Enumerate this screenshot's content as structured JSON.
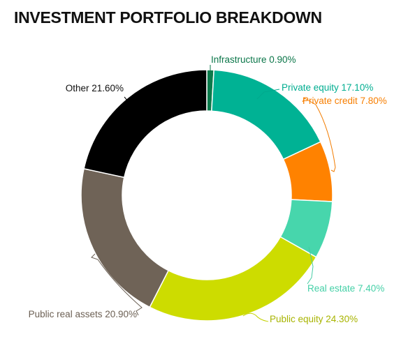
{
  "chart_data": {
    "type": "pie",
    "title": "INVESTMENT PORTFOLIO BREAKDOWN",
    "donut": true,
    "slices": [
      {
        "label": "Infrastructure",
        "display": "Infrastructure 0.90%",
        "value": 0.9,
        "color": "#0b7a4b"
      },
      {
        "label": "Private equity",
        "display": "Private equity 17.10%",
        "value": 17.1,
        "color": "#00b294"
      },
      {
        "label": "Private credit",
        "display": "Private credit 7.80%",
        "value": 7.8,
        "color": "#ff8200"
      },
      {
        "label": "Real estate",
        "display": "Real estate 7.40%",
        "value": 7.4,
        "color": "#47d6ac"
      },
      {
        "label": "Public equity",
        "display": "Public equity 24.30%",
        "value": 24.3,
        "color": "#cddc00"
      },
      {
        "label": "Public real assets",
        "display": "Public real assets 20.90%",
        "value": 20.9,
        "color": "#6f6357"
      },
      {
        "label": "Other",
        "display": "Other 21.60%",
        "value": 21.6,
        "color": "#000000"
      }
    ]
  }
}
